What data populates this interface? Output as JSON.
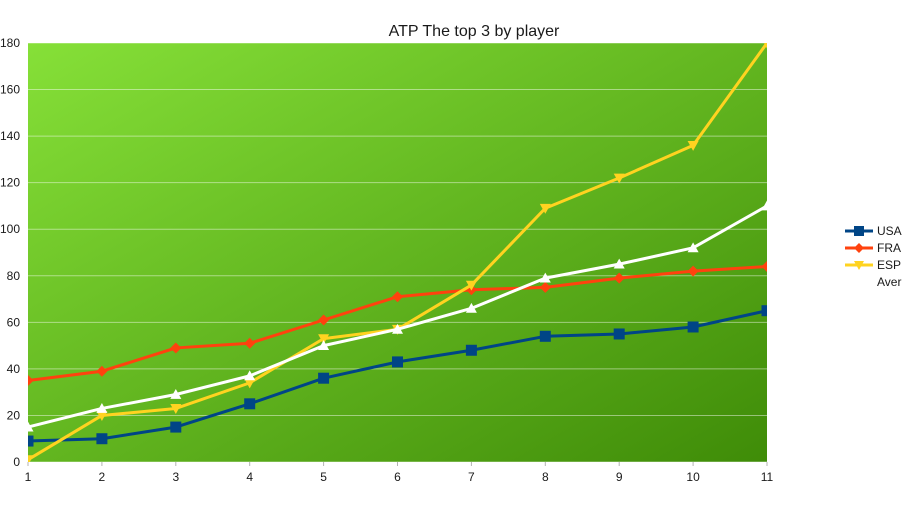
{
  "chart_data": {
    "type": "line",
    "title": "ATP The top 3 by player",
    "xlabel": "",
    "ylabel": "",
    "x": [
      1,
      2,
      3,
      4,
      5,
      6,
      7,
      8,
      9,
      10,
      11
    ],
    "ylim": [
      0,
      180
    ],
    "yticks": [
      0,
      20,
      40,
      60,
      80,
      100,
      120,
      140,
      160,
      180
    ],
    "grid": true,
    "legend_position": "right",
    "background": {
      "gradient_from": "#86e038",
      "gradient_to": "#3f8c08"
    },
    "series": [
      {
        "name": "USA",
        "color": "#004586",
        "marker": "square",
        "values": [
          9,
          10,
          15,
          25,
          36,
          43,
          48,
          54,
          55,
          58,
          65
        ]
      },
      {
        "name": "FRA",
        "color": "#ff420e",
        "marker": "diamond",
        "values": [
          35,
          39,
          49,
          51,
          61,
          71,
          74,
          75,
          79,
          82,
          84
        ]
      },
      {
        "name": "ESP",
        "color": "#ffd320",
        "marker": "triangle-down",
        "values": [
          1,
          20,
          23,
          34,
          53,
          57,
          76,
          109,
          122,
          136,
          180
        ]
      },
      {
        "name": "Aver",
        "color": "#ffffff",
        "marker": "triangle-up",
        "values": [
          15,
          23,
          29,
          37,
          50,
          57,
          66,
          79,
          85,
          92,
          110
        ]
      }
    ]
  }
}
